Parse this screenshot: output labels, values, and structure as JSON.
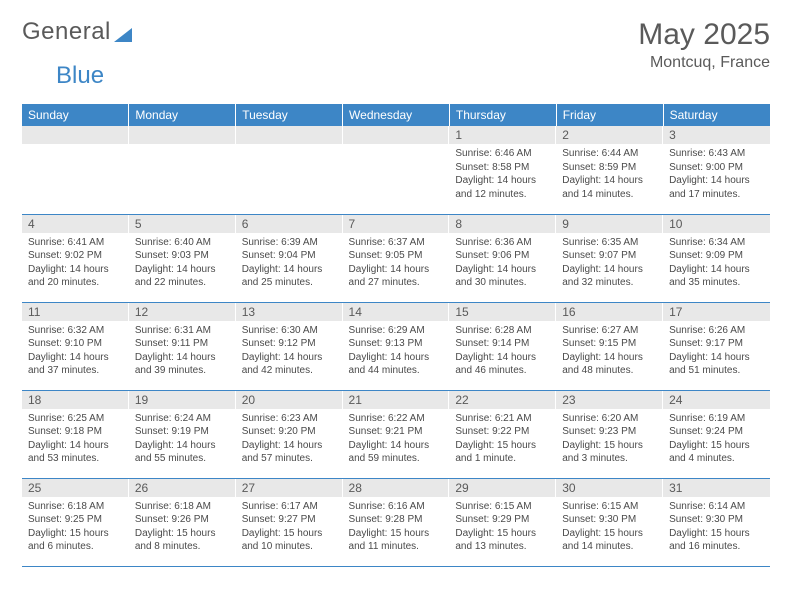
{
  "logo": {
    "text1": "General",
    "text2": "Blue"
  },
  "title": "May 2025",
  "location": "Montcuq, France",
  "colors": {
    "header_bg": "#3d86c6",
    "header_text": "#ffffff",
    "daynum_bg": "#e8e8e8",
    "border": "#3d86c6",
    "text": "#5a5a5a"
  },
  "weekdays": [
    "Sunday",
    "Monday",
    "Tuesday",
    "Wednesday",
    "Thursday",
    "Friday",
    "Saturday"
  ],
  "weeks": [
    [
      {
        "n": "",
        "sr": "",
        "ss": "",
        "dl": ""
      },
      {
        "n": "",
        "sr": "",
        "ss": "",
        "dl": ""
      },
      {
        "n": "",
        "sr": "",
        "ss": "",
        "dl": ""
      },
      {
        "n": "",
        "sr": "",
        "ss": "",
        "dl": ""
      },
      {
        "n": "1",
        "sr": "Sunrise: 6:46 AM",
        "ss": "Sunset: 8:58 PM",
        "dl": "Daylight: 14 hours and 12 minutes."
      },
      {
        "n": "2",
        "sr": "Sunrise: 6:44 AM",
        "ss": "Sunset: 8:59 PM",
        "dl": "Daylight: 14 hours and 14 minutes."
      },
      {
        "n": "3",
        "sr": "Sunrise: 6:43 AM",
        "ss": "Sunset: 9:00 PM",
        "dl": "Daylight: 14 hours and 17 minutes."
      }
    ],
    [
      {
        "n": "4",
        "sr": "Sunrise: 6:41 AM",
        "ss": "Sunset: 9:02 PM",
        "dl": "Daylight: 14 hours and 20 minutes."
      },
      {
        "n": "5",
        "sr": "Sunrise: 6:40 AM",
        "ss": "Sunset: 9:03 PM",
        "dl": "Daylight: 14 hours and 22 minutes."
      },
      {
        "n": "6",
        "sr": "Sunrise: 6:39 AM",
        "ss": "Sunset: 9:04 PM",
        "dl": "Daylight: 14 hours and 25 minutes."
      },
      {
        "n": "7",
        "sr": "Sunrise: 6:37 AM",
        "ss": "Sunset: 9:05 PM",
        "dl": "Daylight: 14 hours and 27 minutes."
      },
      {
        "n": "8",
        "sr": "Sunrise: 6:36 AM",
        "ss": "Sunset: 9:06 PM",
        "dl": "Daylight: 14 hours and 30 minutes."
      },
      {
        "n": "9",
        "sr": "Sunrise: 6:35 AM",
        "ss": "Sunset: 9:07 PM",
        "dl": "Daylight: 14 hours and 32 minutes."
      },
      {
        "n": "10",
        "sr": "Sunrise: 6:34 AM",
        "ss": "Sunset: 9:09 PM",
        "dl": "Daylight: 14 hours and 35 minutes."
      }
    ],
    [
      {
        "n": "11",
        "sr": "Sunrise: 6:32 AM",
        "ss": "Sunset: 9:10 PM",
        "dl": "Daylight: 14 hours and 37 minutes."
      },
      {
        "n": "12",
        "sr": "Sunrise: 6:31 AM",
        "ss": "Sunset: 9:11 PM",
        "dl": "Daylight: 14 hours and 39 minutes."
      },
      {
        "n": "13",
        "sr": "Sunrise: 6:30 AM",
        "ss": "Sunset: 9:12 PM",
        "dl": "Daylight: 14 hours and 42 minutes."
      },
      {
        "n": "14",
        "sr": "Sunrise: 6:29 AM",
        "ss": "Sunset: 9:13 PM",
        "dl": "Daylight: 14 hours and 44 minutes."
      },
      {
        "n": "15",
        "sr": "Sunrise: 6:28 AM",
        "ss": "Sunset: 9:14 PM",
        "dl": "Daylight: 14 hours and 46 minutes."
      },
      {
        "n": "16",
        "sr": "Sunrise: 6:27 AM",
        "ss": "Sunset: 9:15 PM",
        "dl": "Daylight: 14 hours and 48 minutes."
      },
      {
        "n": "17",
        "sr": "Sunrise: 6:26 AM",
        "ss": "Sunset: 9:17 PM",
        "dl": "Daylight: 14 hours and 51 minutes."
      }
    ],
    [
      {
        "n": "18",
        "sr": "Sunrise: 6:25 AM",
        "ss": "Sunset: 9:18 PM",
        "dl": "Daylight: 14 hours and 53 minutes."
      },
      {
        "n": "19",
        "sr": "Sunrise: 6:24 AM",
        "ss": "Sunset: 9:19 PM",
        "dl": "Daylight: 14 hours and 55 minutes."
      },
      {
        "n": "20",
        "sr": "Sunrise: 6:23 AM",
        "ss": "Sunset: 9:20 PM",
        "dl": "Daylight: 14 hours and 57 minutes."
      },
      {
        "n": "21",
        "sr": "Sunrise: 6:22 AM",
        "ss": "Sunset: 9:21 PM",
        "dl": "Daylight: 14 hours and 59 minutes."
      },
      {
        "n": "22",
        "sr": "Sunrise: 6:21 AM",
        "ss": "Sunset: 9:22 PM",
        "dl": "Daylight: 15 hours and 1 minute."
      },
      {
        "n": "23",
        "sr": "Sunrise: 6:20 AM",
        "ss": "Sunset: 9:23 PM",
        "dl": "Daylight: 15 hours and 3 minutes."
      },
      {
        "n": "24",
        "sr": "Sunrise: 6:19 AM",
        "ss": "Sunset: 9:24 PM",
        "dl": "Daylight: 15 hours and 4 minutes."
      }
    ],
    [
      {
        "n": "25",
        "sr": "Sunrise: 6:18 AM",
        "ss": "Sunset: 9:25 PM",
        "dl": "Daylight: 15 hours and 6 minutes."
      },
      {
        "n": "26",
        "sr": "Sunrise: 6:18 AM",
        "ss": "Sunset: 9:26 PM",
        "dl": "Daylight: 15 hours and 8 minutes."
      },
      {
        "n": "27",
        "sr": "Sunrise: 6:17 AM",
        "ss": "Sunset: 9:27 PM",
        "dl": "Daylight: 15 hours and 10 minutes."
      },
      {
        "n": "28",
        "sr": "Sunrise: 6:16 AM",
        "ss": "Sunset: 9:28 PM",
        "dl": "Daylight: 15 hours and 11 minutes."
      },
      {
        "n": "29",
        "sr": "Sunrise: 6:15 AM",
        "ss": "Sunset: 9:29 PM",
        "dl": "Daylight: 15 hours and 13 minutes."
      },
      {
        "n": "30",
        "sr": "Sunrise: 6:15 AM",
        "ss": "Sunset: 9:30 PM",
        "dl": "Daylight: 15 hours and 14 minutes."
      },
      {
        "n": "31",
        "sr": "Sunrise: 6:14 AM",
        "ss": "Sunset: 9:30 PM",
        "dl": "Daylight: 15 hours and 16 minutes."
      }
    ]
  ]
}
